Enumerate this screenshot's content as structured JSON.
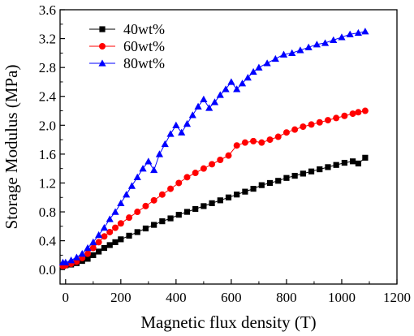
{
  "chart_data": {
    "type": "line",
    "xlabel": "Magnetic flux density (T)",
    "ylabel": "Storage Modulus (MPa)",
    "xlim": [
      -20,
      1200
    ],
    "ylim": [
      -0.2,
      3.6
    ],
    "xticks": [
      0,
      200,
      400,
      600,
      800,
      1000,
      1200
    ],
    "yticks": [
      0.0,
      0.4,
      0.8,
      1.2,
      1.6,
      2.0,
      2.4,
      2.8,
      3.2,
      3.6
    ],
    "xtick_labels": [
      "0",
      "200",
      "400",
      "600",
      "800",
      "1000",
      "1200"
    ],
    "ytick_labels": [
      "0.0",
      "0.4",
      "0.8",
      "1.2",
      "1.6",
      "2.0",
      "2.4",
      "2.8",
      "3.2",
      "3.6"
    ],
    "grid": false,
    "legend_position": "top-left",
    "series": [
      {
        "name": "40wt%",
        "color": "#000000",
        "marker": "square",
        "x": [
          -10,
          0,
          20,
          40,
          60,
          80,
          100,
          120,
          140,
          160,
          180,
          200,
          230,
          260,
          290,
          320,
          350,
          380,
          410,
          440,
          470,
          500,
          530,
          560,
          590,
          620,
          650,
          680,
          710,
          740,
          770,
          800,
          830,
          860,
          890,
          920,
          950,
          980,
          1010,
          1040,
          1060,
          1085
        ],
        "y": [
          0.05,
          0.06,
          0.07,
          0.09,
          0.12,
          0.15,
          0.2,
          0.25,
          0.3,
          0.34,
          0.38,
          0.42,
          0.47,
          0.52,
          0.57,
          0.62,
          0.67,
          0.71,
          0.76,
          0.8,
          0.84,
          0.88,
          0.92,
          0.96,
          1.0,
          1.04,
          1.08,
          1.12,
          1.17,
          1.2,
          1.23,
          1.27,
          1.3,
          1.33,
          1.36,
          1.39,
          1.42,
          1.45,
          1.48,
          1.5,
          1.47,
          1.55
        ]
      },
      {
        "name": "60wt%",
        "color": "#ff0000",
        "marker": "circle",
        "x": [
          -10,
          0,
          20,
          40,
          60,
          80,
          100,
          120,
          140,
          160,
          180,
          200,
          230,
          260,
          290,
          320,
          350,
          380,
          410,
          440,
          470,
          500,
          530,
          560,
          590,
          620,
          650,
          680,
          710,
          740,
          770,
          800,
          830,
          860,
          890,
          920,
          950,
          980,
          1010,
          1040,
          1060,
          1085
        ],
        "y": [
          0.05,
          0.06,
          0.08,
          0.11,
          0.16,
          0.22,
          0.3,
          0.38,
          0.46,
          0.52,
          0.58,
          0.64,
          0.72,
          0.8,
          0.88,
          0.96,
          1.04,
          1.12,
          1.2,
          1.28,
          1.34,
          1.4,
          1.46,
          1.52,
          1.58,
          1.72,
          1.76,
          1.78,
          1.76,
          1.8,
          1.84,
          1.9,
          1.94,
          1.98,
          2.01,
          2.04,
          2.07,
          2.1,
          2.13,
          2.16,
          2.18,
          2.2
        ]
      },
      {
        "name": "80wt%",
        "color": "#0000ff",
        "marker": "triangle",
        "x": [
          -10,
          0,
          20,
          40,
          60,
          80,
          100,
          120,
          140,
          160,
          180,
          200,
          220,
          240,
          260,
          280,
          300,
          320,
          340,
          360,
          380,
          400,
          420,
          440,
          460,
          480,
          500,
          520,
          540,
          560,
          580,
          600,
          620,
          640,
          660,
          680,
          700,
          730,
          760,
          790,
          820,
          850,
          880,
          910,
          940,
          970,
          1000,
          1030,
          1060,
          1085
        ],
        "y": [
          0.1,
          0.1,
          0.13,
          0.17,
          0.22,
          0.3,
          0.38,
          0.48,
          0.58,
          0.7,
          0.8,
          0.92,
          1.04,
          1.16,
          1.28,
          1.4,
          1.5,
          1.38,
          1.6,
          1.74,
          1.88,
          2.0,
          1.9,
          2.02,
          2.14,
          2.26,
          2.36,
          2.24,
          2.32,
          2.42,
          2.5,
          2.6,
          2.5,
          2.58,
          2.66,
          2.74,
          2.8,
          2.86,
          2.92,
          2.98,
          3.0,
          3.04,
          3.08,
          3.12,
          3.14,
          3.18,
          3.22,
          3.26,
          3.28,
          3.3
        ]
      }
    ]
  }
}
